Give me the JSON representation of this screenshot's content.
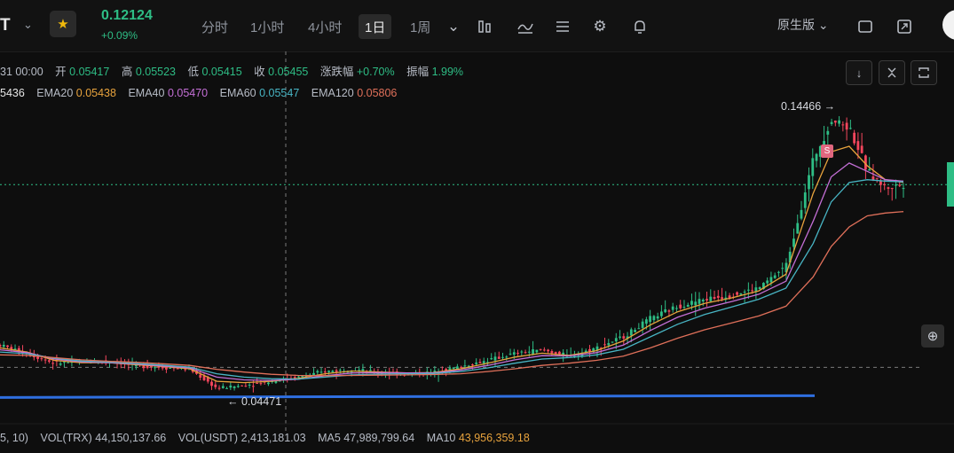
{
  "toolbar": {
    "symbol": "T",
    "price": "0.12124",
    "change": "+0.09%",
    "timeframes": [
      "分时",
      "1小时",
      "4小时",
      "1日",
      "1周"
    ],
    "active_timeframe": "1日",
    "chart_type": "原生版"
  },
  "legend": {
    "date": "31 00:00",
    "open_label": "开",
    "open": "0.05417",
    "high_label": "高",
    "high": "0.05523",
    "low_label": "低",
    "low": "0.05415",
    "close_label": "收",
    "close": "0.05455",
    "change_label": "涨跌幅",
    "change": "+0.70%",
    "amp_label": "振幅",
    "amp": "1.99%"
  },
  "ema": {
    "ema10_value": "5436",
    "ema20_label": "EMA20",
    "ema20_value": "0.05438",
    "ema40_label": "EMA40",
    "ema40_value": "0.05470",
    "ema60_label": "EMA60",
    "ema60_value": "0.05547",
    "ema120_label": "EMA120",
    "ema120_value": "0.05806"
  },
  "volume": {
    "params": "5, 10)",
    "vol_trx_label": "VOL(TRX)",
    "vol_trx": "44,150,137.66",
    "vol_usdt_label": "VOL(USDT)",
    "vol_usdt": "2,413,181.03",
    "ma5_label": "MA5",
    "ma5": "47,989,799.64",
    "ma10_label": "MA10",
    "ma10": "43,956,359.18"
  },
  "annotations": {
    "high_marker": "0.14466 →",
    "low_marker": "← 0.04471",
    "signal_badge": "S"
  },
  "colors": {
    "up": "#2ebd85",
    "down": "#f6465d",
    "ema20": "#e8a33d",
    "ema40": "#c46fd6",
    "ema60": "#48b5c4",
    "ema120": "#e0705a",
    "support_line": "#2f6fe0"
  },
  "icons": [
    "chevron-down-icon",
    "star-icon",
    "indicator-icon",
    "draw-icon",
    "layout-icon",
    "settings-icon",
    "alert-icon",
    "fullscreen-icon",
    "maximize-icon",
    "arrow-down-icon",
    "collapse-icon",
    "expand-icon",
    "plus-icon"
  ],
  "chart_data": {
    "type": "line",
    "x": [
      0,
      3,
      6,
      9,
      12,
      15,
      18,
      21,
      24,
      27,
      30,
      33,
      36,
      39,
      42,
      45,
      48,
      51,
      54,
      57,
      60,
      63,
      66,
      69,
      72,
      75,
      78,
      81,
      84,
      87,
      90,
      92,
      94,
      96,
      98,
      100
    ],
    "series": [
      {
        "name": "price",
        "values": [
          0.0635,
          0.0605,
          0.057,
          0.0575,
          0.0578,
          0.0562,
          0.0555,
          0.0548,
          0.048,
          0.049,
          0.0505,
          0.052,
          0.054,
          0.0548,
          0.0535,
          0.053,
          0.0537,
          0.0558,
          0.058,
          0.0605,
          0.0618,
          0.0595,
          0.0625,
          0.0665,
          0.073,
          0.0775,
          0.08,
          0.0815,
          0.084,
          0.092,
          0.13,
          0.1446,
          0.142,
          0.126,
          0.12,
          0.1212
        ]
      },
      {
        "name": "EMA20",
        "values": [
          0.0625,
          0.061,
          0.058,
          0.0572,
          0.0572,
          0.0565,
          0.0558,
          0.055,
          0.0505,
          0.05,
          0.0505,
          0.0515,
          0.0532,
          0.0542,
          0.0538,
          0.0535,
          0.0536,
          0.055,
          0.057,
          0.0592,
          0.0606,
          0.0598,
          0.0615,
          0.065,
          0.0708,
          0.0755,
          0.0785,
          0.0805,
          0.083,
          0.089,
          0.118,
          0.133,
          0.135,
          0.128,
          0.123,
          0.122
        ]
      },
      {
        "name": "EMA40",
        "values": [
          0.0618,
          0.0608,
          0.0585,
          0.0575,
          0.0572,
          0.0567,
          0.056,
          0.0553,
          0.052,
          0.051,
          0.0508,
          0.0512,
          0.0525,
          0.0535,
          0.0536,
          0.0535,
          0.0535,
          0.0545,
          0.0562,
          0.0582,
          0.0597,
          0.0596,
          0.0608,
          0.0635,
          0.0688,
          0.0735,
          0.0768,
          0.0792,
          0.0818,
          0.0865,
          0.108,
          0.124,
          0.129,
          0.126,
          0.123,
          0.1225
        ]
      },
      {
        "name": "EMA60",
        "values": [
          0.061,
          0.0604,
          0.0588,
          0.0578,
          0.0574,
          0.0569,
          0.0563,
          0.0556,
          0.0532,
          0.052,
          0.0514,
          0.0513,
          0.052,
          0.0528,
          0.0531,
          0.0532,
          0.0533,
          0.054,
          0.0553,
          0.057,
          0.0585,
          0.059,
          0.06,
          0.062,
          0.0665,
          0.071,
          0.0745,
          0.0772,
          0.08,
          0.084,
          0.1,
          0.115,
          0.122,
          0.123,
          0.1225,
          0.1222
        ]
      },
      {
        "name": "EMA120",
        "values": [
          0.06,
          0.0598,
          0.059,
          0.0582,
          0.0577,
          0.0573,
          0.0568,
          0.0562,
          0.0548,
          0.0538,
          0.053,
          0.0526,
          0.0525,
          0.0526,
          0.0527,
          0.0528,
          0.0529,
          0.0532,
          0.054,
          0.055,
          0.0562,
          0.057,
          0.058,
          0.0595,
          0.0625,
          0.066,
          0.069,
          0.0715,
          0.074,
          0.0775,
          0.088,
          0.099,
          0.106,
          0.11,
          0.111,
          0.1115
        ]
      }
    ],
    "current_price": 0.12124,
    "crosshair_price": 0.0555,
    "highest": 0.14466,
    "lowest": 0.04471,
    "support_line": 0.045,
    "grid": false
  }
}
